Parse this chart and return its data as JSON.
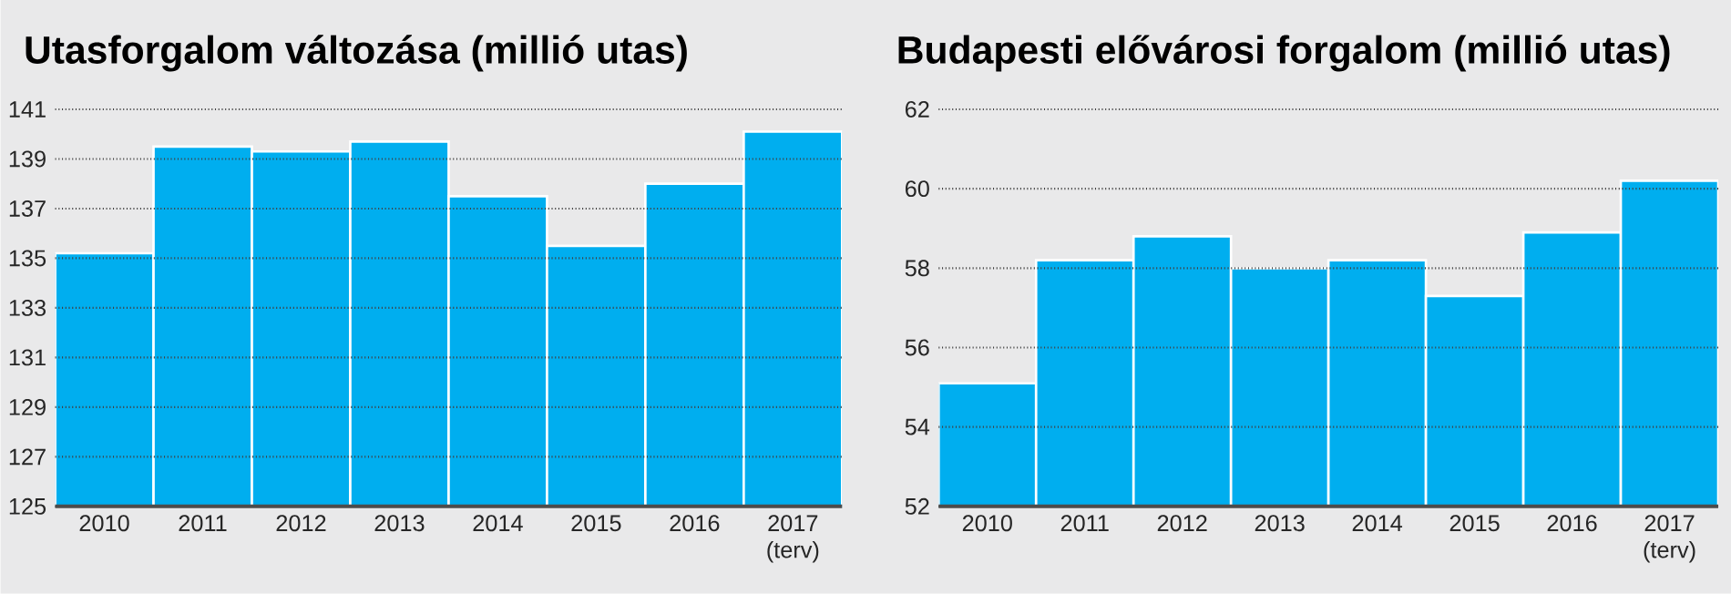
{
  "chart_data": [
    {
      "type": "bar",
      "title": "Utasforgalom változása (millió utas)",
      "categories": [
        "2010",
        "2011",
        "2012",
        "2013",
        "2014",
        "2015",
        "2016",
        "2017 (terv)"
      ],
      "values": [
        135.2,
        139.5,
        139.3,
        139.7,
        137.5,
        135.5,
        138.0,
        140.1
      ],
      "color": "#00aeef",
      "ylim": [
        125,
        141
      ],
      "yticks": [
        125,
        127,
        129,
        131,
        133,
        135,
        137,
        139,
        141
      ],
      "grid": "y"
    },
    {
      "type": "bar",
      "title": "Budapesti elővárosi forgalom (millió utas)",
      "categories": [
        "2010",
        "2011",
        "2012",
        "2013",
        "2014",
        "2015",
        "2016",
        "2017 (terv)"
      ],
      "values": [
        55.1,
        58.2,
        58.8,
        58.0,
        58.2,
        57.3,
        58.9,
        60.2
      ],
      "color": "#00aeef",
      "ylim": [
        52,
        62
      ],
      "yticks": [
        52,
        54,
        56,
        58,
        60,
        62
      ],
      "grid": "y"
    }
  ]
}
